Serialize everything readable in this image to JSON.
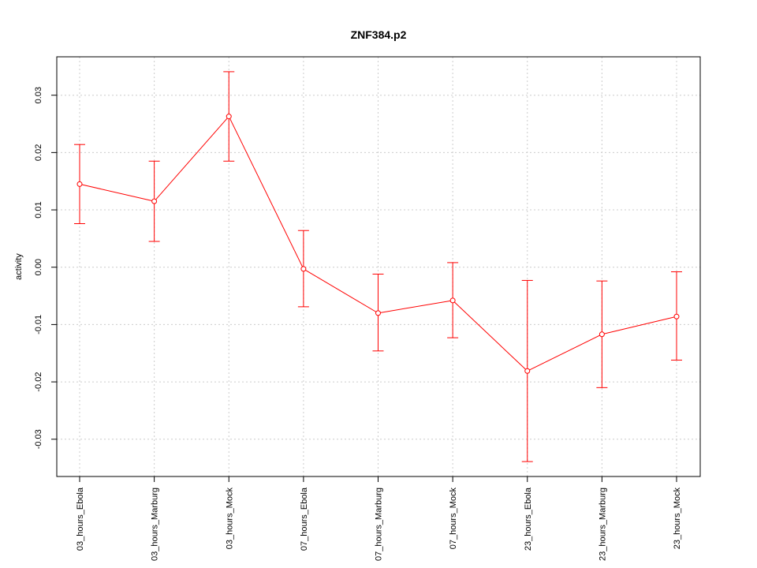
{
  "chart_data": {
    "type": "line",
    "title": "ZNF384.p2",
    "xlabel": "",
    "ylabel": "activity",
    "categories": [
      "03_hours_Ebola",
      "03_hours_Marburg",
      "03_hours_Mock",
      "07_hours_Ebola",
      "07_hours_Marburg",
      "07_hours_Mock",
      "23_hours_Ebola",
      "23_hours_Marburg",
      "23_hours_Mock"
    ],
    "values": [
      0.0145,
      0.0115,
      0.0263,
      -0.0003,
      -0.008,
      -0.0058,
      -0.0181,
      -0.0117,
      -0.0086
    ],
    "error_upper": [
      0.0214,
      0.0185,
      0.0341,
      0.0064,
      -0.0012,
      0.0008,
      -0.0023,
      -0.0024,
      -0.0008
    ],
    "error_lower": [
      0.0076,
      0.0045,
      0.0185,
      -0.0069,
      -0.0146,
      -0.0123,
      -0.0339,
      -0.021,
      -0.0162
    ],
    "y_ticks": [
      -0.03,
      -0.02,
      -0.01,
      0.0,
      0.01,
      0.02,
      0.03
    ],
    "y_tick_labels": [
      "-0.03",
      "-0.02",
      "-0.01",
      "0.00",
      "0.01",
      "0.02",
      "0.03"
    ],
    "ylim": [
      -0.0365,
      0.0367
    ],
    "grid": true,
    "color": "#ff0000",
    "grid_color": "#cccccc"
  }
}
